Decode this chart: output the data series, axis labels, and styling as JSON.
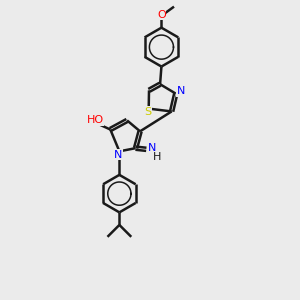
{
  "background_color": "#ebebeb",
  "bond_color": "#1a1a1a",
  "atom_colors": {
    "N": "#0000ff",
    "O": "#ff0000",
    "S": "#cccc00",
    "C": "#1a1a1a"
  },
  "figsize": [
    3.0,
    3.0
  ],
  "dpi": 100
}
